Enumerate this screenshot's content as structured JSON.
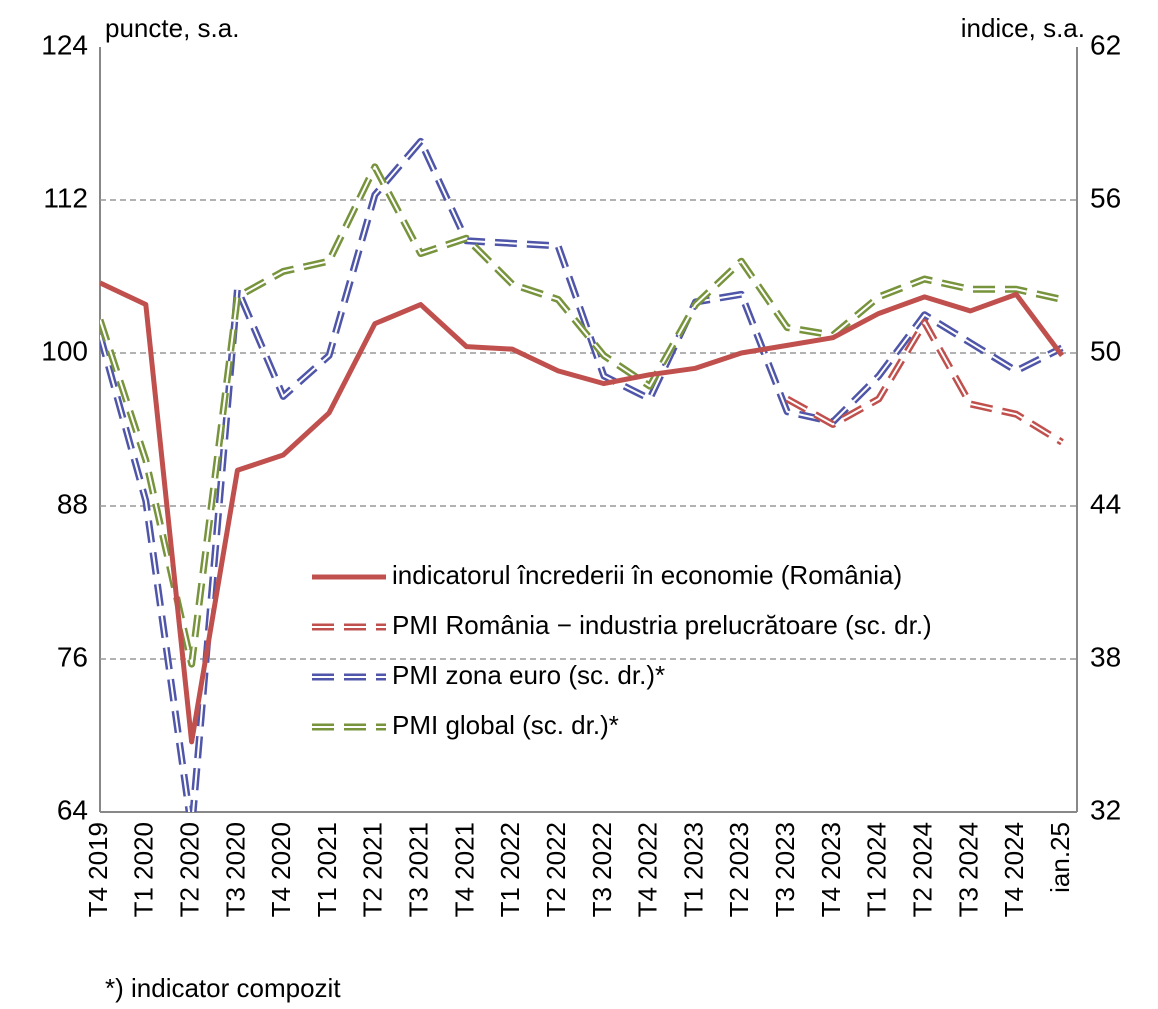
{
  "chart_data": {
    "type": "line",
    "y_label": "puncte, s.a.",
    "y2_label": "indice, s.a.",
    "footnote": "*) indicator compozit",
    "categories": [
      "T4 2019",
      "T1 2020",
      "T2 2020",
      "T3 2020",
      "T4 2020",
      "T1 2021",
      "T2 2021",
      "T3 2021",
      "T4 2021",
      "T1 2022",
      "T2 2022",
      "T3 2022",
      "T4 2022",
      "T1 2023",
      "T2 2023",
      "T3 2023",
      "T4 2023",
      "T1 2024",
      "T2 2024",
      "T3 2024",
      "T4 2024",
      "ian.25"
    ],
    "ylim": [
      64,
      124
    ],
    "yticks": [
      64,
      76,
      88,
      100,
      112,
      124
    ],
    "y2lim": [
      32,
      62
    ],
    "y2ticks": [
      32,
      38,
      44,
      50,
      56,
      62
    ],
    "grid": true,
    "series": [
      {
        "name": "indicatorul încrederii în economie (România)",
        "color": "#c0504d",
        "style": "solid",
        "values": [
          105.5,
          103.8,
          69.5,
          90.8,
          92,
          95.3,
          102.3,
          103.8,
          100.5,
          100.3,
          98.6,
          97.6,
          98.3,
          98.8,
          100,
          100.6,
          101.2,
          103.1,
          104.4,
          103.3,
          104.6,
          99.8
        ]
      },
      {
        "name": "PMI România − industria prelucrătoare (sc. dr.)",
        "color": "#c0504d",
        "style": "dashed",
        "axis": "y2",
        "values": [
          null,
          null,
          null,
          null,
          null,
          null,
          null,
          null,
          null,
          null,
          null,
          null,
          null,
          null,
          null,
          48.2,
          47.2,
          48.2,
          51.2,
          48.0,
          47.6,
          46.5
        ]
      },
      {
        "name": "PMI zona euro (sc. dr.)*",
        "color": "#4f55a8",
        "style": "dashed",
        "axis": "y2",
        "values": [
          50.7,
          44.2,
          31.3,
          52.5,
          48.3,
          49.9,
          56.2,
          58.3,
          54.4,
          54.3,
          54.2,
          49.1,
          48.2,
          52.0,
          52.3,
          47.7,
          47.3,
          49.1,
          51.5,
          50.4,
          49.3,
          50.2
        ]
      },
      {
        "name": "PMI global (sc. dr.)*",
        "color": "#77933c",
        "style": "dashed",
        "axis": "y2",
        "values": [
          51.3,
          45.8,
          37.8,
          52.2,
          53.2,
          53.6,
          57.3,
          53.9,
          54.5,
          52.7,
          52.1,
          49.9,
          48.7,
          51.9,
          53.6,
          51.0,
          50.7,
          52.2,
          52.9,
          52.5,
          52.5,
          52.1
        ]
      }
    ]
  }
}
